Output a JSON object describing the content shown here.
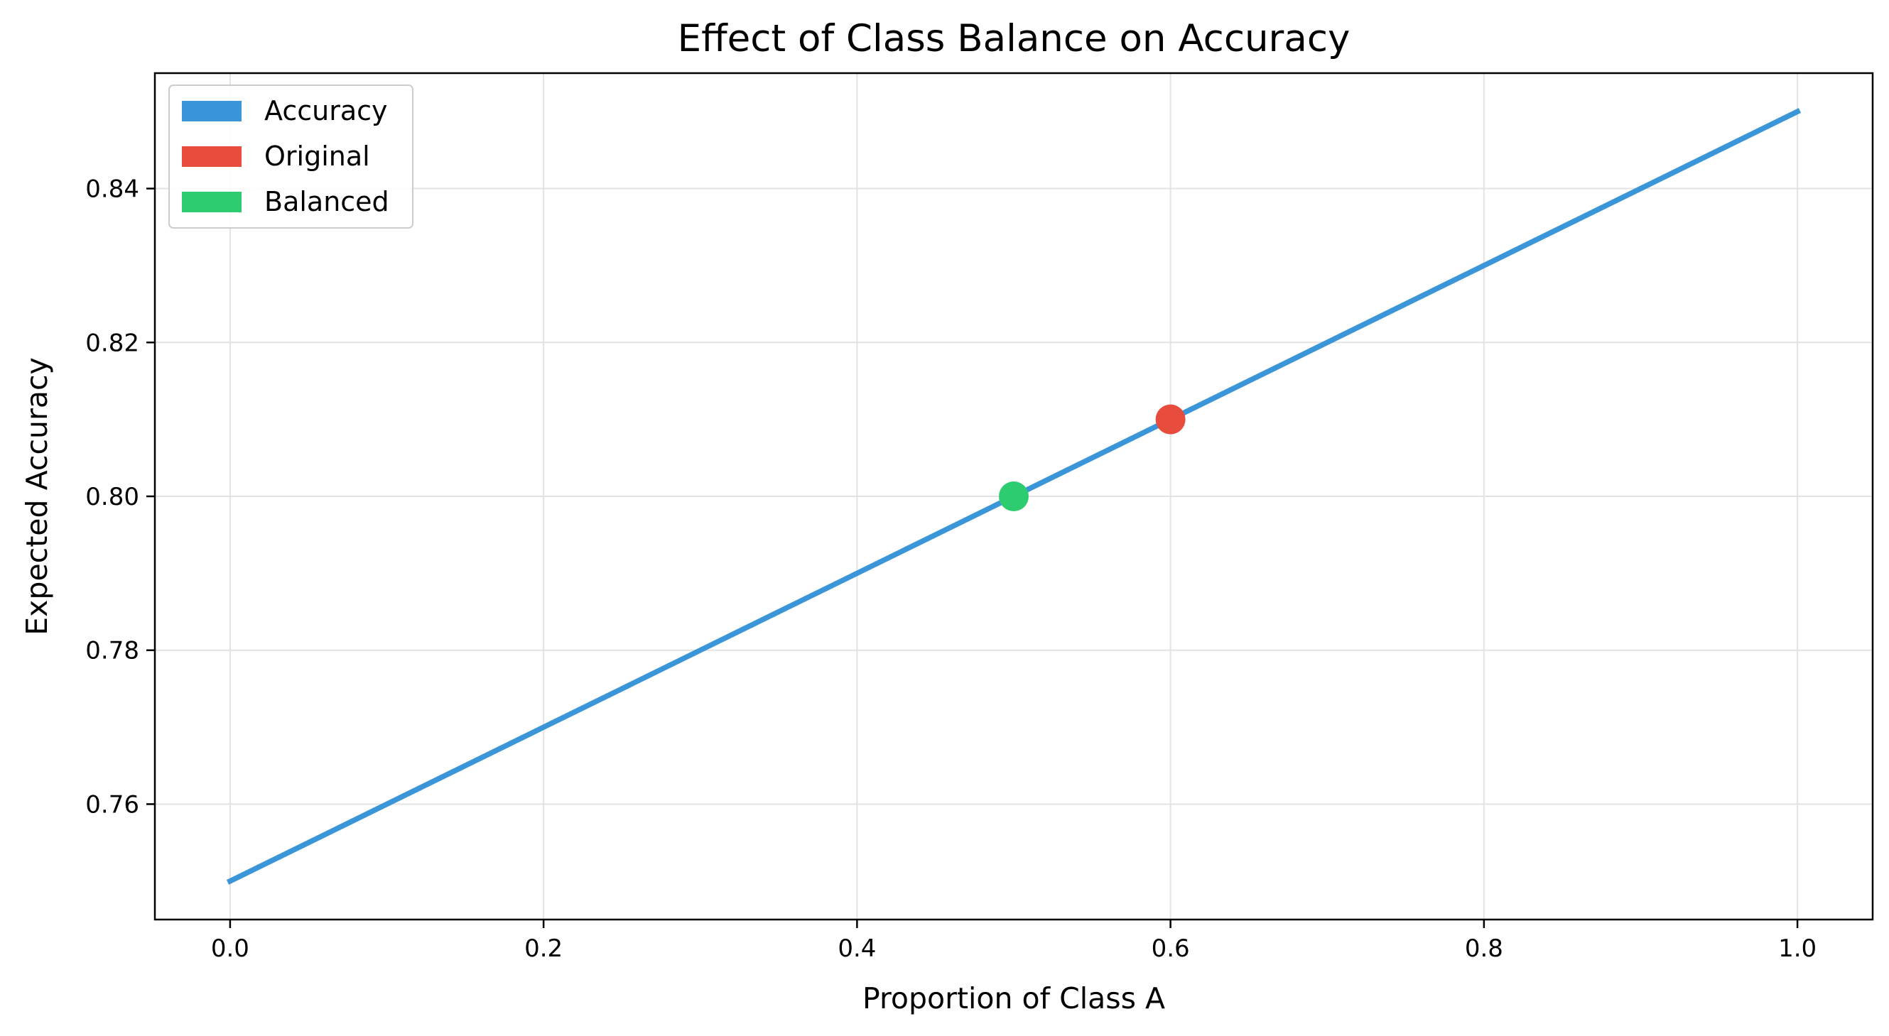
{
  "chart_data": {
    "type": "line",
    "title": "Effect of Class Balance on Accuracy",
    "xlabel": "Proportion of Class A",
    "ylabel": "Expected Accuracy",
    "xlim": [
      -0.048,
      1.048
    ],
    "ylim": [
      0.745,
      0.855
    ],
    "x_ticks": [
      0.0,
      0.2,
      0.4,
      0.6,
      0.8,
      1.0
    ],
    "x_tick_labels": [
      "0.0",
      "0.2",
      "0.4",
      "0.6",
      "0.8",
      "1.0"
    ],
    "y_ticks": [
      0.76,
      0.78,
      0.8,
      0.82,
      0.84
    ],
    "y_tick_labels": [
      "0.76",
      "0.78",
      "0.80",
      "0.82",
      "0.84"
    ],
    "grid": true,
    "legend_position": "top-left",
    "series": [
      {
        "name": "Accuracy",
        "kind": "line",
        "color": "#3a96d8",
        "x": [
          0.0,
          1.0
        ],
        "y": [
          0.75,
          0.85
        ]
      },
      {
        "name": "Original",
        "kind": "point",
        "color": "#e74c3c",
        "x": [
          0.6
        ],
        "y": [
          0.81
        ]
      },
      {
        "name": "Balanced",
        "kind": "point",
        "color": "#2ecc71",
        "x": [
          0.5
        ],
        "y": [
          0.8
        ]
      }
    ],
    "legend": [
      {
        "label": "Accuracy",
        "color": "#3a96d8"
      },
      {
        "label": "Original",
        "color": "#e74c3c"
      },
      {
        "label": "Balanced",
        "color": "#2ecc71"
      }
    ]
  }
}
